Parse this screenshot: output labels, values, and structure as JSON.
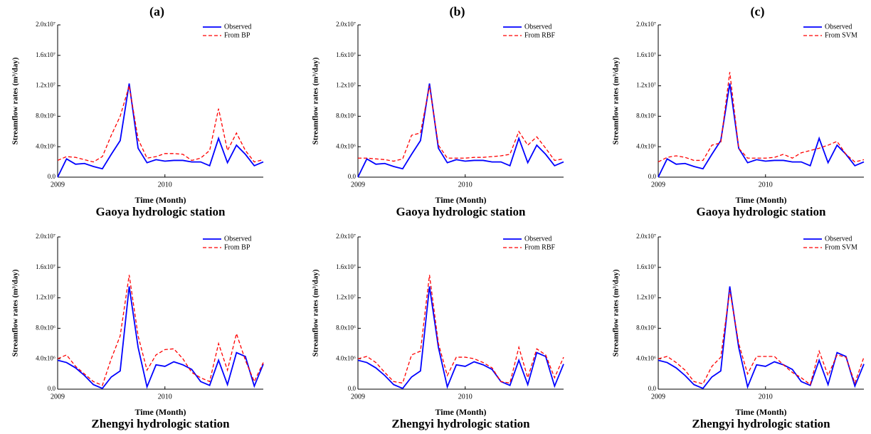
{
  "chart_data": [
    {
      "type": "line",
      "title": "(a)",
      "xlabel": "Time (Month)",
      "ylabel": "Streamflow rates (m³/day)",
      "subtitle": "Gaoya hydrologic station",
      "legend": "upper right",
      "x": [
        2009,
        2009.083,
        2009.167,
        2009.25,
        2009.333,
        2009.417,
        2009.5,
        2009.583,
        2009.667,
        2009.75,
        2009.833,
        2009.917,
        2010,
        2010.083,
        2010.167,
        2010.25,
        2010.333,
        2010.417,
        2010.5,
        2010.583,
        2010.667,
        2010.75,
        2010.833,
        2010.917
      ],
      "xlim": [
        2009,
        2010.917
      ],
      "xticks": [
        2009,
        2010
      ],
      "ylim": [
        0,
        20000000.0
      ],
      "yticks": [
        {
          "value": 0,
          "label": "0.0"
        },
        {
          "value": 4000000.0,
          "label": "4.0x10⁶"
        },
        {
          "value": 8000000.0,
          "label": "8.0x10⁶"
        },
        {
          "value": 12000000.0,
          "label": "1.2x10⁷"
        },
        {
          "value": 16000000.0,
          "label": "1.6x10⁷"
        },
        {
          "value": 20000000.0,
          "label": "2.0x10⁷"
        }
      ],
      "series": [
        {
          "name": "Observed",
          "color": "#0000ff",
          "style": "solid",
          "values": [
            0,
            2400000.0,
            1700000.0,
            1800000.0,
            1400000.0,
            1100000.0,
            3000000.0,
            4800000.0,
            12300000.0,
            3800000.0,
            1900000.0,
            2300000.0,
            2100000.0,
            2200000.0,
            2200000.0,
            2000000.0,
            2000000.0,
            1500000.0,
            5100000.0,
            1900000.0,
            4200000.0,
            3000000.0,
            1500000.0,
            2000000.0
          ]
        },
        {
          "name": "From BP",
          "color": "#ff0000",
          "style": "dashed",
          "values": [
            2200000.0,
            2700000.0,
            2600000.0,
            2300000.0,
            2000000.0,
            2700000.0,
            5500000.0,
            8000000.0,
            12000000.0,
            5000000.0,
            2500000.0,
            2700000.0,
            3100000.0,
            3100000.0,
            3000000.0,
            2200000.0,
            2500000.0,
            3500000.0,
            9000000.0,
            3500000.0,
            5800000.0,
            3500000.0,
            2000000.0,
            2300000.0
          ]
        }
      ]
    },
    {
      "type": "line",
      "title": "(b)",
      "xlabel": "Time (Month)",
      "ylabel": "Streamflow rates (m³/day)",
      "subtitle": "Gaoya hydrologic station",
      "legend": "upper right",
      "x": [
        2009,
        2009.083,
        2009.167,
        2009.25,
        2009.333,
        2009.417,
        2009.5,
        2009.583,
        2009.667,
        2009.75,
        2009.833,
        2009.917,
        2010,
        2010.083,
        2010.167,
        2010.25,
        2010.333,
        2010.417,
        2010.5,
        2010.583,
        2010.667,
        2010.75,
        2010.833,
        2010.917
      ],
      "xlim": [
        2009,
        2010.917
      ],
      "xticks": [
        2009,
        2010
      ],
      "ylim": [
        0,
        20000000.0
      ],
      "yticks": [
        {
          "value": 0,
          "label": "0.0"
        },
        {
          "value": 4000000.0,
          "label": "4.0x10⁶"
        },
        {
          "value": 8000000.0,
          "label": "8.0x10⁶"
        },
        {
          "value": 12000000.0,
          "label": "1.2x10⁷"
        },
        {
          "value": 16000000.0,
          "label": "1.6x10⁷"
        },
        {
          "value": 20000000.0,
          "label": "2.0x10⁷"
        }
      ],
      "series": [
        {
          "name": "Observed",
          "color": "#0000ff",
          "style": "solid",
          "values": [
            0,
            2400000.0,
            1700000.0,
            1800000.0,
            1400000.0,
            1100000.0,
            3000000.0,
            4800000.0,
            12300000.0,
            3800000.0,
            1900000.0,
            2300000.0,
            2100000.0,
            2200000.0,
            2200000.0,
            2000000.0,
            2000000.0,
            1500000.0,
            5100000.0,
            1900000.0,
            4200000.0,
            3000000.0,
            1500000.0,
            2000000.0
          ]
        },
        {
          "name": "From RBF",
          "color": "#ff0000",
          "style": "dashed",
          "values": [
            2500000.0,
            2500000.0,
            2400000.0,
            2300000.0,
            2100000.0,
            2400000.0,
            5500000.0,
            5800000.0,
            12000000.0,
            4200000.0,
            2500000.0,
            2500000.0,
            2500000.0,
            2600000.0,
            2600000.0,
            2700000.0,
            2800000.0,
            3000000.0,
            6000000.0,
            4200000.0,
            5300000.0,
            3800000.0,
            2200000.0,
            2400000.0
          ]
        }
      ]
    },
    {
      "type": "line",
      "title": "(c)",
      "xlabel": "Time (Month)",
      "ylabel": "Streamflow rates (m³/day)",
      "subtitle": "Gaoya hydrologic station",
      "legend": "upper right",
      "x": [
        2009,
        2009.083,
        2009.167,
        2009.25,
        2009.333,
        2009.417,
        2009.5,
        2009.583,
        2009.667,
        2009.75,
        2009.833,
        2009.917,
        2010,
        2010.083,
        2010.167,
        2010.25,
        2010.333,
        2010.417,
        2010.5,
        2010.583,
        2010.667,
        2010.75,
        2010.833,
        2010.917
      ],
      "xlim": [
        2009,
        2010.917
      ],
      "xticks": [
        2009,
        2010
      ],
      "ylim": [
        0,
        20000000.0
      ],
      "yticks": [
        {
          "value": 0,
          "label": "0.0"
        },
        {
          "value": 4000000.0,
          "label": "4.0x10⁶"
        },
        {
          "value": 8000000.0,
          "label": "8.0x10⁶"
        },
        {
          "value": 12000000.0,
          "label": "1.2x10⁷"
        },
        {
          "value": 16000000.0,
          "label": "1.6x10⁷"
        },
        {
          "value": 20000000.0,
          "label": "2.0x10⁷"
        }
      ],
      "series": [
        {
          "name": "Observed",
          "color": "#0000ff",
          "style": "solid",
          "values": [
            0,
            2400000.0,
            1700000.0,
            1800000.0,
            1400000.0,
            1100000.0,
            3000000.0,
            4800000.0,
            12300000.0,
            3800000.0,
            1900000.0,
            2300000.0,
            2100000.0,
            2200000.0,
            2200000.0,
            2000000.0,
            2000000.0,
            1500000.0,
            5100000.0,
            1900000.0,
            4200000.0,
            3000000.0,
            1500000.0,
            2000000.0
          ]
        },
        {
          "name": "From SVM",
          "color": "#ff0000",
          "style": "dashed",
          "values": [
            2000000.0,
            2600000.0,
            2800000.0,
            2600000.0,
            2200000.0,
            2200000.0,
            4200000.0,
            4500000.0,
            13800000.0,
            3800000.0,
            2500000.0,
            2500000.0,
            2500000.0,
            2600000.0,
            3000000.0,
            2500000.0,
            3200000.0,
            3500000.0,
            3800000.0,
            4200000.0,
            4700000.0,
            3000000.0,
            2000000.0,
            2300000.0
          ]
        }
      ]
    },
    {
      "type": "line",
      "xlabel": "Time (Month)",
      "ylabel": "Streamflow rates (m³/day)",
      "subtitle": "Zhengyi hydrologic station",
      "legend": "upper right",
      "x": [
        2009,
        2009.083,
        2009.167,
        2009.25,
        2009.333,
        2009.417,
        2009.5,
        2009.583,
        2009.667,
        2009.75,
        2009.833,
        2009.917,
        2010,
        2010.083,
        2010.167,
        2010.25,
        2010.333,
        2010.417,
        2010.5,
        2010.583,
        2010.667,
        2010.75,
        2010.833,
        2010.917
      ],
      "xlim": [
        2009,
        2010.917
      ],
      "xticks": [
        2009,
        2010
      ],
      "ylim": [
        0,
        20000000.0
      ],
      "yticks": [
        {
          "value": 0,
          "label": "0.0"
        },
        {
          "value": 4000000.0,
          "label": "4.0x10⁶"
        },
        {
          "value": 8000000.0,
          "label": "8.0x10⁶"
        },
        {
          "value": 12000000.0,
          "label": "1.2x10⁷"
        },
        {
          "value": 16000000.0,
          "label": "1.6x10⁷"
        },
        {
          "value": 20000000.0,
          "label": "2.0x10⁷"
        }
      ],
      "series": [
        {
          "name": "Observed",
          "color": "#0000ff",
          "style": "solid",
          "values": [
            3800000.0,
            3500000.0,
            2800000.0,
            1800000.0,
            600000.0,
            100000.0,
            1600000.0,
            2400000.0,
            13500000.0,
            5500000.0,
            300000.0,
            3200000.0,
            3000000.0,
            3600000.0,
            3200000.0,
            2600000.0,
            1000000.0,
            500000.0,
            3800000.0,
            600000.0,
            4800000.0,
            4300000.0,
            400000.0,
            3300000.0
          ]
        },
        {
          "name": "From BP",
          "color": "#ff0000",
          "style": "dashed",
          "values": [
            4000000.0,
            4500000.0,
            3000000.0,
            2000000.0,
            1000000.0,
            500000.0,
            4000000.0,
            7000000.0,
            15000000.0,
            7000000.0,
            2500000.0,
            4500000.0,
            5200000.0,
            5300000.0,
            4000000.0,
            2200000.0,
            1500000.0,
            1000000.0,
            6000000.0,
            2500000.0,
            7300000.0,
            3800000.0,
            1000000.0,
            3500000.0
          ]
        }
      ]
    },
    {
      "type": "line",
      "xlabel": "Time (Month)",
      "ylabel": "Streamflow rates (m³/day)",
      "subtitle": "Zhengyi hydrologic station",
      "legend": "upper right",
      "x": [
        2009,
        2009.083,
        2009.167,
        2009.25,
        2009.333,
        2009.417,
        2009.5,
        2009.583,
        2009.667,
        2009.75,
        2009.833,
        2009.917,
        2010,
        2010.083,
        2010.167,
        2010.25,
        2010.333,
        2010.417,
        2010.5,
        2010.583,
        2010.667,
        2010.75,
        2010.833,
        2010.917
      ],
      "xlim": [
        2009,
        2010.917
      ],
      "xticks": [
        2009,
        2010
      ],
      "ylim": [
        0,
        20000000.0
      ],
      "yticks": [
        {
          "value": 0,
          "label": "0.0"
        },
        {
          "value": 4000000.0,
          "label": "4.0x10⁶"
        },
        {
          "value": 8000000.0,
          "label": "8.0x10⁶"
        },
        {
          "value": 12000000.0,
          "label": "1.2x10⁷"
        },
        {
          "value": 16000000.0,
          "label": "1.6x10⁷"
        },
        {
          "value": 20000000.0,
          "label": "2.0x10⁷"
        }
      ],
      "series": [
        {
          "name": "Observed",
          "color": "#0000ff",
          "style": "solid",
          "values": [
            3800000.0,
            3500000.0,
            2800000.0,
            1800000.0,
            600000.0,
            100000.0,
            1600000.0,
            2400000.0,
            13500000.0,
            5500000.0,
            300000.0,
            3200000.0,
            3000000.0,
            3600000.0,
            3200000.0,
            2600000.0,
            1000000.0,
            500000.0,
            3800000.0,
            600000.0,
            4800000.0,
            4300000.0,
            400000.0,
            3300000.0
          ]
        },
        {
          "name": "From RBF",
          "color": "#ff0000",
          "style": "dashed",
          "values": [
            4000000.0,
            4300000.0,
            3500000.0,
            2200000.0,
            1000000.0,
            800000.0,
            4500000.0,
            5000000.0,
            15000000.0,
            6000000.0,
            1800000.0,
            4200000.0,
            4200000.0,
            4000000.0,
            3500000.0,
            2800000.0,
            1000000.0,
            800000.0,
            5500000.0,
            1500000.0,
            5300000.0,
            4500000.0,
            1500000.0,
            4200000.0
          ]
        }
      ]
    },
    {
      "type": "line",
      "xlabel": "Time (Month)",
      "ylabel": "Streamflow rates (m³/day)",
      "subtitle": "Zhengyi hydrologic station",
      "legend": "upper right",
      "x": [
        2009,
        2009.083,
        2009.167,
        2009.25,
        2009.333,
        2009.417,
        2009.5,
        2009.583,
        2009.667,
        2009.75,
        2009.833,
        2009.917,
        2010,
        2010.083,
        2010.167,
        2010.25,
        2010.333,
        2010.417,
        2010.5,
        2010.583,
        2010.667,
        2010.75,
        2010.833,
        2010.917
      ],
      "xlim": [
        2009,
        2010.917
      ],
      "xticks": [
        2009,
        2010
      ],
      "ylim": [
        0,
        20000000.0
      ],
      "yticks": [
        {
          "value": 0,
          "label": "0.0"
        },
        {
          "value": 4000000.0,
          "label": "4.0x10⁶"
        },
        {
          "value": 8000000.0,
          "label": "8.0x10⁶"
        },
        {
          "value": 12000000.0,
          "label": "1.2x10⁷"
        },
        {
          "value": 16000000.0,
          "label": "1.6x10⁷"
        },
        {
          "value": 20000000.0,
          "label": "2.0x10⁷"
        }
      ],
      "series": [
        {
          "name": "Observed",
          "color": "#0000ff",
          "style": "solid",
          "values": [
            3800000.0,
            3500000.0,
            2800000.0,
            1800000.0,
            600000.0,
            100000.0,
            1600000.0,
            2400000.0,
            13500000.0,
            5500000.0,
            300000.0,
            3200000.0,
            3000000.0,
            3600000.0,
            3200000.0,
            2600000.0,
            1000000.0,
            500000.0,
            3800000.0,
            600000.0,
            4800000.0,
            4300000.0,
            400000.0,
            3300000.0
          ]
        },
        {
          "name": "From SVM",
          "color": "#ff0000",
          "style": "dashed",
          "values": [
            4000000.0,
            4300000.0,
            3500000.0,
            2500000.0,
            1000000.0,
            700000.0,
            3000000.0,
            4200000.0,
            13000000.0,
            6000000.0,
            2000000.0,
            4300000.0,
            4300000.0,
            4300000.0,
            3200000.0,
            2200000.0,
            1500000.0,
            600000.0,
            5000000.0,
            1800000.0,
            4500000.0,
            4200000.0,
            800000.0,
            4200000.0
          ]
        }
      ]
    }
  ]
}
